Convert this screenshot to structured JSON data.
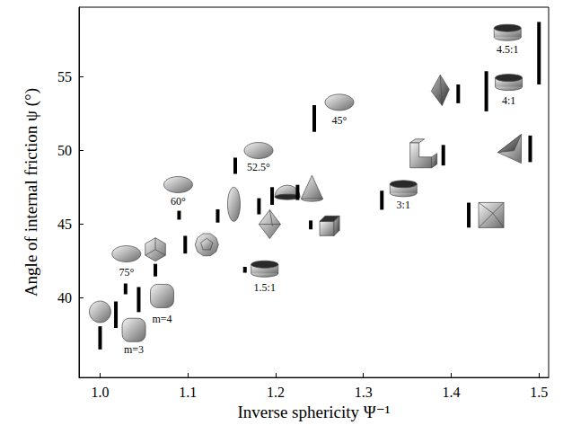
{
  "chart_data": {
    "type": "scatter",
    "x_label": "Inverse sphericity Ψ⁻¹",
    "y_label": "Angle of internal friction ψ (°)",
    "xlim": [
      0.976,
      1.511
    ],
    "ylim": [
      34.6,
      59.7
    ],
    "xticks": [
      {
        "value": 1,
        "label": "1.0"
      },
      1.1,
      1.2,
      1.3,
      1.4,
      1.5
    ],
    "yticks": [
      40,
      45,
      50,
      55
    ],
    "grid": false,
    "color": "#000000",
    "points": [
      {
        "x": 1.0,
        "y_range": [
          36.5,
          38.07
        ],
        "marker": "sphere"
      },
      {
        "x": 1.018,
        "y_range": [
          37.95,
          39.76
        ],
        "marker": "superball",
        "label": "m=3"
      },
      {
        "x": 1.029,
        "y_range": [
          40.24,
          40.97
        ],
        "marker": "lens",
        "label": "75°"
      },
      {
        "x": 1.044,
        "y_range": [
          39.03,
          40.73
        ],
        "marker": "superball",
        "label": "m=4"
      },
      {
        "x": 1.063,
        "y_range": [
          41.45,
          42.3
        ],
        "marker": "icosahedron"
      },
      {
        "x": 1.09,
        "y_range": [
          45.3,
          45.9
        ],
        "marker": "lens",
        "label": "60°"
      },
      {
        "x": 1.097,
        "y_range": [
          43.0,
          44.2
        ],
        "marker": "dodecahedron"
      },
      {
        "x": 1.134,
        "y_range": [
          45.1,
          46.0
        ],
        "marker": "ellipsoid"
      },
      {
        "x": 1.154,
        "y_range": [
          48.4,
          49.5
        ],
        "marker": "lens",
        "label": "52.5°"
      },
      {
        "x": 1.165,
        "y_range": [
          41.7,
          42.1
        ],
        "marker": "cylinder",
        "label": "1.5:1"
      },
      {
        "x": 1.181,
        "y_range": [
          45.66,
          46.75
        ],
        "marker": "octahedron"
      },
      {
        "x": 1.196,
        "y_range": [
          46.3,
          47.5
        ],
        "marker": "hemisphere"
      },
      {
        "x": 1.24,
        "y_range": [
          44.64,
          45.24
        ],
        "marker": "cube"
      },
      {
        "x": 1.225,
        "y_range": [
          46.63,
          47.66
        ],
        "marker": "cone"
      },
      {
        "x": 1.244,
        "y_range": [
          51.25,
          53.06
        ],
        "marker": "lens",
        "label": "45°"
      },
      {
        "x": 1.321,
        "y_range": [
          45.97,
          47.26
        ],
        "marker": "cylinder",
        "label": "3:1"
      },
      {
        "x": 1.391,
        "y_range": [
          48.97,
          50.36
        ],
        "marker": "lshape"
      },
      {
        "x": 1.408,
        "y_range": [
          53.19,
          54.46
        ],
        "marker": "bipyramid"
      },
      {
        "x": 1.44,
        "y_range": [
          52.64,
          55.36
        ],
        "marker": "cylinder",
        "label": "4:1"
      },
      {
        "x": 1.5,
        "y_range": [
          54.46,
          58.7
        ],
        "marker": "cylinder",
        "label": "4.5:1"
      },
      {
        "x": 1.49,
        "y_range": [
          49.2,
          51.0
        ],
        "marker": "tetrahedron"
      },
      {
        "x": 1.42,
        "y_range": [
          44.76,
          46.45
        ],
        "marker": "cubepyramid"
      }
    ]
  }
}
